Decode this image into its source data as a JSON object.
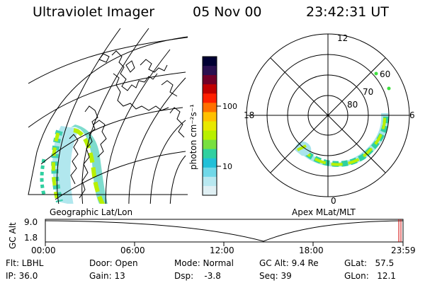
{
  "header": {
    "instrument": "Ultraviolet Imager",
    "date": "05 Nov 00",
    "time": "23:42:31 UT"
  },
  "panels": {
    "geographic_label": "Geographic Lat/Lon",
    "apex_label": "Apex MLat/MLT"
  },
  "colorbar": {
    "unit_label": "photon cm⁻²s⁻¹",
    "tick_100": "100",
    "tick_10": "10",
    "colors": [
      "#000033",
      "#2a1050",
      "#700028",
      "#c00000",
      "#ff2000",
      "#ff7000",
      "#ffc000",
      "#e8e800",
      "#b8f000",
      "#78e040",
      "#30d0a0",
      "#20c0d8",
      "#70d8e8",
      "#b8e8f0",
      "#e0f0f4"
    ]
  },
  "polar": {
    "label_12": "12",
    "label_18": "18",
    "label_6": "6",
    "label_0": "0",
    "lat_60": "60",
    "lat_70": "70",
    "lat_80": "80"
  },
  "altitude_plot": {
    "ylabel": "GC Alt",
    "ytick_high": "9.0",
    "ytick_low": "1.8",
    "xticks": [
      "00:00",
      "06:00",
      "12:00",
      "18:00",
      "23:59"
    ]
  },
  "footer": {
    "col1": {
      "flt": "Flt: LBHL",
      "ip": "IP: 36.0"
    },
    "col2": {
      "door": "Door: Open",
      "gain": "Gain: 13"
    },
    "col3": {
      "mode": "Mode: Normal",
      "dsp": "Dsp:    -3.8"
    },
    "col4": {
      "gcalt": "GC Alt: 9.4 Re",
      "seq": "Seq: 39"
    },
    "col5": {
      "glat": "GLat:   57.5",
      "glon": "GLon:   12.1"
    }
  }
}
